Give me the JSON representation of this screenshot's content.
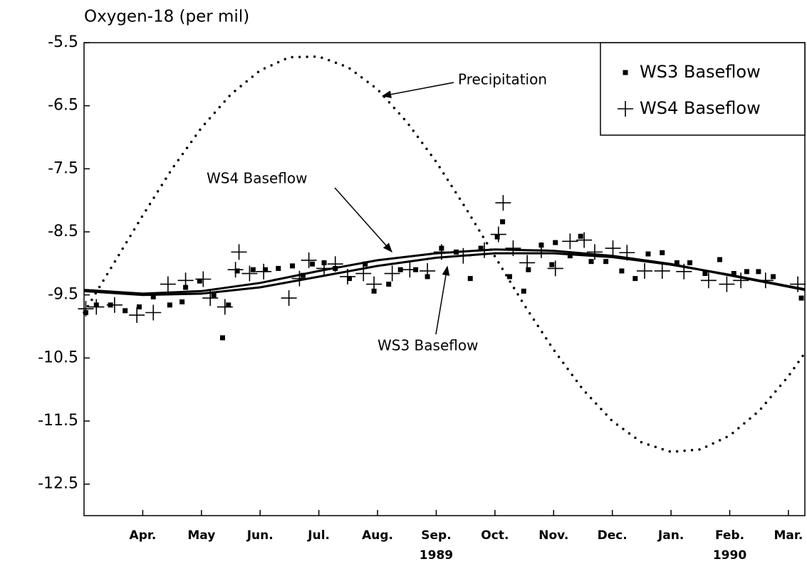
{
  "chart_data": {
    "type": "scatter",
    "y_label": "Oxygen-18 (per mil)",
    "xlim": [
      0,
      12.28
    ],
    "ylim": [
      -13.0,
      -5.5
    ],
    "xticks": [
      {
        "value": 1,
        "label": "Apr."
      },
      {
        "value": 2,
        "label": "May"
      },
      {
        "value": 3,
        "label": "Jun."
      },
      {
        "value": 4,
        "label": "Jul."
      },
      {
        "value": 5,
        "label": "Aug."
      },
      {
        "value": 6,
        "label": "Sep."
      },
      {
        "value": 7,
        "label": "Oct."
      },
      {
        "value": 8,
        "label": "Nov."
      },
      {
        "value": 9,
        "label": "Dec."
      },
      {
        "value": 10,
        "label": "Jan."
      },
      {
        "value": 11,
        "label": "Feb."
      },
      {
        "value": 12,
        "label": "Mar."
      }
    ],
    "year_labels": [
      {
        "value": 6,
        "label": "1989"
      },
      {
        "value": 11,
        "label": "1990"
      }
    ],
    "yticks": [
      -5.5,
      -6.5,
      -7.5,
      -8.5,
      -9.5,
      -10.5,
      -11.5,
      -12.5
    ],
    "legend": "upper right",
    "series": [
      {
        "name": "WS3 Baseflow",
        "marker": "square",
        "color": "#000000",
        "x": [
          0.03,
          0.21,
          0.45,
          0.7,
          0.94,
          1.18,
          1.46,
          1.67,
          1.73,
          1.97,
          2.21,
          2.36,
          2.46,
          2.61,
          2.88,
          3.09,
          3.31,
          3.55,
          3.73,
          3.89,
          4.09,
          4.28,
          4.52,
          4.79,
          4.94,
          5.19,
          5.39,
          5.65,
          5.85,
          6.09,
          6.34,
          6.58,
          6.76,
          7.04,
          7.13,
          7.25,
          7.49,
          7.57,
          7.79,
          7.97,
          8.03,
          8.28,
          8.46,
          8.64,
          8.89,
          9.16,
          9.39,
          9.61,
          9.85,
          10.1,
          10.32,
          10.58,
          10.83,
          11.07,
          11.29,
          11.49,
          11.74,
          12.22
        ],
        "values": [
          -9.78,
          -9.66,
          -9.66,
          -9.75,
          -9.69,
          -9.53,
          -9.66,
          -9.61,
          -9.38,
          -9.28,
          -9.5,
          -10.18,
          -9.66,
          -9.12,
          -9.1,
          -9.1,
          -9.08,
          -9.04,
          -9.19,
          -9.01,
          -8.99,
          -9.08,
          -9.24,
          -9.01,
          -9.44,
          -9.33,
          -9.1,
          -9.1,
          -9.21,
          -8.76,
          -8.82,
          -9.24,
          -8.76,
          -8.58,
          -8.34,
          -9.21,
          -9.44,
          -9.1,
          -8.71,
          -9.02,
          -8.67,
          -8.88,
          -8.57,
          -8.97,
          -8.97,
          -9.12,
          -9.24,
          -8.85,
          -8.83,
          -8.99,
          -8.99,
          -9.16,
          -8.94,
          -9.16,
          -9.13,
          -9.13,
          -9.21,
          -9.55
        ]
      },
      {
        "name": "WS4 Baseflow",
        "marker": "plus",
        "color": "#000000",
        "x": [
          0.03,
          0.21,
          0.52,
          0.9,
          1.18,
          1.43,
          1.73,
          2.03,
          2.15,
          2.4,
          2.64,
          2.58,
          2.82,
          3.06,
          3.49,
          3.67,
          3.83,
          4.09,
          4.28,
          4.49,
          4.76,
          4.94,
          5.25,
          5.55,
          5.85,
          6.09,
          6.46,
          6.82,
          7.06,
          7.14,
          7.31,
          7.55,
          7.79,
          8.03,
          8.28,
          8.52,
          8.7,
          9.01,
          9.25,
          9.55,
          9.85,
          10.22,
          10.64,
          10.95,
          11.19,
          11.61,
          12.16
        ],
        "values": [
          -9.72,
          -9.69,
          -9.66,
          -9.82,
          -9.78,
          -9.33,
          -9.27,
          -9.25,
          -9.55,
          -9.69,
          -8.82,
          -9.1,
          -9.16,
          -9.13,
          -9.55,
          -9.24,
          -8.95,
          -9.08,
          -9.01,
          -9.21,
          -9.16,
          -9.33,
          -9.16,
          -9.1,
          -9.12,
          -8.82,
          -8.88,
          -8.79,
          -8.54,
          -8.04,
          -8.76,
          -8.99,
          -8.79,
          -9.08,
          -8.65,
          -8.63,
          -8.82,
          -8.76,
          -8.83,
          -9.12,
          -9.12,
          -9.13,
          -9.27,
          -9.33,
          -9.27,
          -9.27,
          -9.33
        ]
      }
    ],
    "curves": [
      {
        "label": "Precipitation",
        "style": "dotted",
        "x": [
          0,
          0.5,
          1,
          1.5,
          2,
          2.5,
          3,
          3.5,
          4,
          4.5,
          5,
          5.5,
          6,
          6.5,
          7,
          7.5,
          8,
          8.5,
          9,
          9.5,
          10,
          10.5,
          11,
          11.5,
          12,
          12.28
        ],
        "values": [
          -9.78,
          -9.01,
          -8.24,
          -7.5,
          -6.85,
          -6.32,
          -5.94,
          -5.73,
          -5.72,
          -5.89,
          -6.24,
          -6.76,
          -7.39,
          -8.12,
          -8.89,
          -9.66,
          -10.37,
          -11.0,
          -11.5,
          -11.84,
          -11.99,
          -11.95,
          -11.73,
          -11.34,
          -10.79,
          -10.42
        ]
      },
      {
        "label": "WS4 Baseflow",
        "style": "solid",
        "x": [
          0,
          1,
          2,
          3,
          4,
          5,
          6,
          7,
          8,
          9,
          10,
          11,
          12,
          12.28
        ],
        "values": [
          -9.42,
          -9.48,
          -9.44,
          -9.31,
          -9.12,
          -8.95,
          -8.84,
          -8.78,
          -8.8,
          -8.88,
          -9.01,
          -9.19,
          -9.37,
          -9.42
        ]
      },
      {
        "label": "WS3 Baseflow",
        "style": "solid",
        "x": [
          0,
          1,
          2,
          3,
          4,
          5,
          6,
          7,
          8,
          9,
          10,
          11,
          12,
          12.28
        ],
        "values": [
          -9.44,
          -9.5,
          -9.48,
          -9.38,
          -9.21,
          -9.04,
          -8.91,
          -8.84,
          -8.84,
          -8.9,
          -9.02,
          -9.18,
          -9.36,
          -9.41
        ]
      }
    ]
  }
}
